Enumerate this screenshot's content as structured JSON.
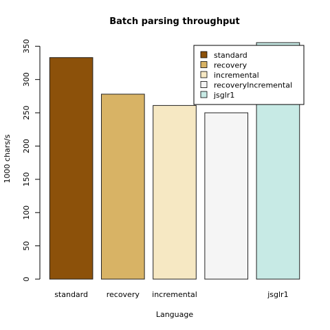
{
  "chart_data": {
    "type": "bar",
    "title": "Batch parsing throughput",
    "xlabel": "Language",
    "ylabel": "1000 chars/s",
    "categories": [
      "standard",
      "recovery",
      "incremental",
      "",
      "jsglr1"
    ],
    "values": [
      333,
      278,
      261,
      250,
      359
    ],
    "colors": [
      "#8c510a",
      "#d8b365",
      "#f6e8c3",
      "#f5f5f5",
      "#c7eae5"
    ],
    "ylim": [
      0,
      360
    ],
    "yticks": [
      0,
      50,
      100,
      150,
      200,
      250,
      300,
      350
    ],
    "grid": false,
    "legend": {
      "placement": "top-right",
      "entries": [
        "standard",
        "recovery",
        "incremental",
        "recoveryIncremental",
        "jsglr1"
      ]
    }
  }
}
